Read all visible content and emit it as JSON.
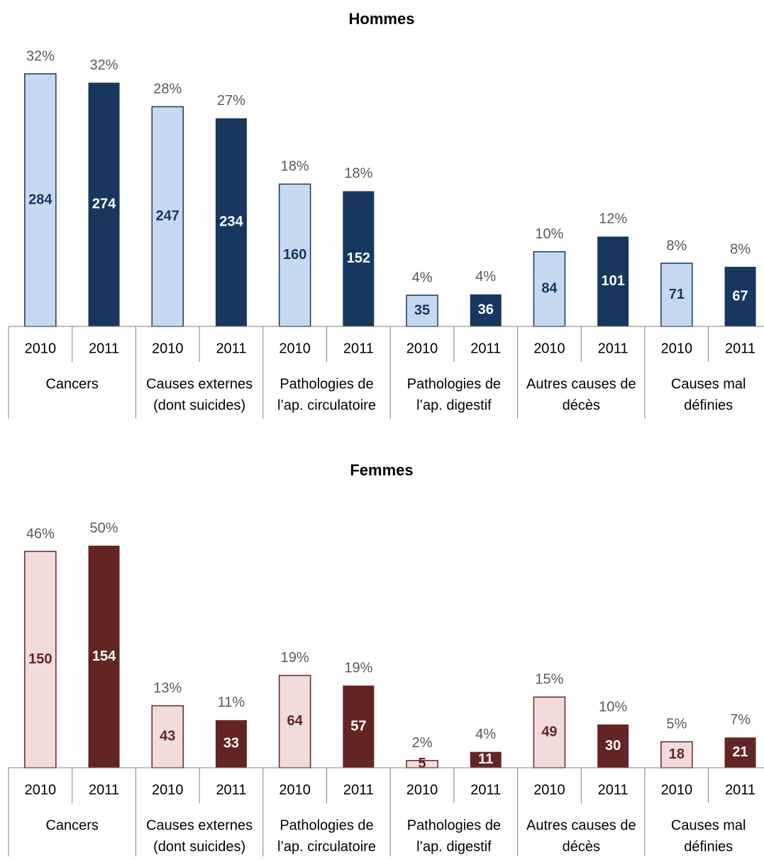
{
  "chart_data": [
    {
      "type": "bar",
      "title": "Hommes",
      "categories": [
        [
          "Cancers"
        ],
        [
          "Causes externes",
          "(dont suicides)"
        ],
        [
          "Pathologies de",
          "l’ap. circulatoire"
        ],
        [
          "Pathologies de",
          "l’ap. digestif"
        ],
        [
          "Autres causes de",
          "décès"
        ],
        [
          "Causes mal",
          "définies"
        ]
      ],
      "series": [
        {
          "name": "2010",
          "color": "#c6d9f1",
          "border": "#17375e",
          "values": [
            284,
            247,
            160,
            35,
            84,
            71
          ],
          "share_labels": [
            "32%",
            "28%",
            "18%",
            "4%",
            "10%",
            "8%"
          ]
        },
        {
          "name": "2011",
          "color": "#17375e",
          "values": [
            274,
            234,
            152,
            36,
            101,
            67
          ],
          "share_labels": [
            "32%",
            "27%",
            "18%",
            "4%",
            "12%",
            "8%"
          ]
        }
      ]
    },
    {
      "type": "bar",
      "title": "Femmes",
      "categories": [
        [
          "Cancers"
        ],
        [
          "Causes externes",
          "(dont suicides)"
        ],
        [
          "Pathologies de",
          "l’ap. circulatoire"
        ],
        [
          "Pathologies de",
          "l’ap. digestif"
        ],
        [
          "Autres causes de",
          "décès"
        ],
        [
          "Causes mal",
          "définies"
        ]
      ],
      "series": [
        {
          "name": "2010",
          "color": "#f2dcdb",
          "border": "#632523",
          "values": [
            150,
            43,
            64,
            5,
            49,
            18
          ],
          "share_labels": [
            "46%",
            "13%",
            "19%",
            "2%",
            "15%",
            "5%"
          ]
        },
        {
          "name": "2011",
          "color": "#632523",
          "values": [
            154,
            33,
            57,
            11,
            30,
            21
          ],
          "share_labels": [
            "50%",
            "11%",
            "19%",
            "4%",
            "10%",
            "7%"
          ]
        }
      ]
    }
  ]
}
